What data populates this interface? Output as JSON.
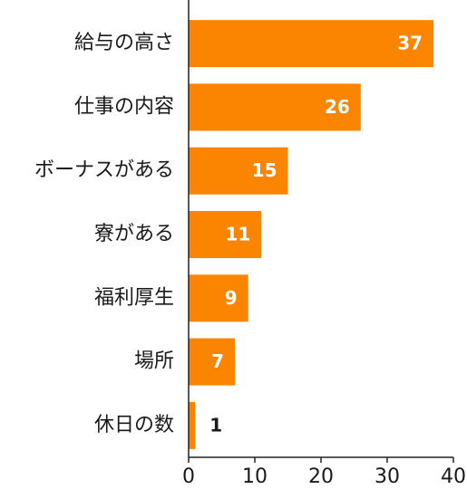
{
  "chart_data": {
    "type": "bar",
    "orientation": "horizontal",
    "categories": [
      "給与の高さ",
      "仕事の内容",
      "ボーナスがある",
      "寮がある",
      "福利厚生",
      "場所",
      "休日の数"
    ],
    "values": [
      37,
      26,
      15,
      11,
      9,
      7,
      1
    ],
    "color": "#fb8500",
    "xlim": [
      0,
      40
    ],
    "xticks": [
      0,
      10,
      20,
      30,
      40
    ]
  }
}
